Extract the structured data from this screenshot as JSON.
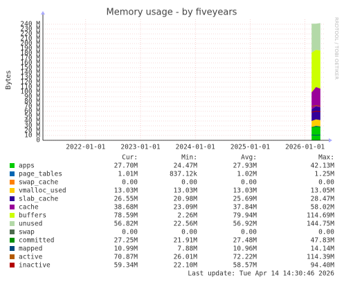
{
  "chart_data": {
    "type": "stacked_area",
    "title": "Memory usage - by fiveyears",
    "y_label": "Bytes",
    "side_note": "RRDTOOL / TOBI OETIKER",
    "xlim": [
      2021.22,
      2026.37
    ],
    "xticks": [
      {
        "value": 2022,
        "label": "2022-01-01"
      },
      {
        "value": 2023,
        "label": "2023-01-01"
      },
      {
        "value": 2024,
        "label": "2024-01-01"
      },
      {
        "value": 2025,
        "label": "2025-01-01"
      },
      {
        "value": 2026,
        "label": "2026-01-01"
      }
    ],
    "ylim": [
      0,
      250
    ],
    "yticks": [
      0,
      {
        "value": 10,
        "label": "10 M"
      },
      {
        "value": 20,
        "label": "20 M"
      },
      {
        "value": 30,
        "label": "30 M"
      },
      {
        "value": 40,
        "label": "40 M"
      },
      {
        "value": 50,
        "label": "50 M"
      },
      {
        "value": 60,
        "label": "60 M"
      },
      {
        "value": 70,
        "label": "70 M"
      },
      {
        "value": 80,
        "label": "80 M"
      },
      {
        "value": 90,
        "label": "90 M"
      },
      {
        "value": 100,
        "label": "100 M"
      },
      {
        "value": 110,
        "label": "110 M"
      },
      {
        "value": 120,
        "label": "120 M"
      },
      {
        "value": 130,
        "label": "130 M"
      },
      {
        "value": 140,
        "label": "140 M"
      },
      {
        "value": 150,
        "label": "150 M"
      },
      {
        "value": 160,
        "label": "160 M"
      },
      {
        "value": 170,
        "label": "170 M"
      },
      {
        "value": 180,
        "label": "180 M"
      },
      {
        "value": 190,
        "label": "190 M"
      },
      {
        "value": 200,
        "label": "200 M"
      },
      {
        "value": 210,
        "label": "210 M"
      },
      {
        "value": 220,
        "label": "220 M"
      },
      {
        "value": 230,
        "label": "230 M"
      },
      {
        "value": 240,
        "label": "240 M"
      }
    ],
    "grid": true,
    "x": [
      2026.12,
      2026.2,
      2026.28
    ],
    "stat_headers": [
      "Cur:",
      "Min:",
      "Avg:",
      "Max:"
    ],
    "series": [
      {
        "name": "apps",
        "color": "#00cc00",
        "kind": "area",
        "values": [
          26,
          29,
          27.7
        ],
        "stats": [
          "27.70M",
          "24.47M",
          "27.93M",
          "42.13M"
        ]
      },
      {
        "name": "page_tables",
        "color": "#0066b3",
        "kind": "area",
        "values": [
          1.0,
          1.1,
          1.01
        ],
        "stats": [
          "1.01M",
          "837.12k",
          "1.02M",
          "1.25M"
        ]
      },
      {
        "name": "swap_cache",
        "color": "#ff8000",
        "kind": "area",
        "values": [
          0,
          0,
          0
        ],
        "stats": [
          "0.00",
          "0.00",
          "0.00",
          "0.00"
        ]
      },
      {
        "name": "vmalloc_used",
        "color": "#ffcc00",
        "kind": "area",
        "values": [
          13.03,
          13.03,
          13.03
        ],
        "stats": [
          "13.03M",
          "13.03M",
          "13.03M",
          "13.05M"
        ]
      },
      {
        "name": "slab_cache",
        "color": "#330099",
        "kind": "area",
        "values": [
          24,
          27,
          26.55
        ],
        "stats": [
          "26.55M",
          "20.98M",
          "25.69M",
          "28.47M"
        ]
      },
      {
        "name": "cache",
        "color": "#990099",
        "kind": "area",
        "values": [
          35,
          40,
          38.68
        ],
        "stats": [
          "38.68M",
          "23.09M",
          "37.84M",
          "58.02M"
        ]
      },
      {
        "name": "buffers",
        "color": "#ccff00",
        "kind": "area",
        "values": [
          82,
          77,
          78.59
        ],
        "stats": [
          "78.59M",
          "2.26M",
          "79.94M",
          "114.69M"
        ]
      },
      {
        "name": "unused",
        "color": "#b3d9a8",
        "kind": "area",
        "values": [
          60,
          54,
          56.82
        ],
        "stats": [
          "56.82M",
          "22.56M",
          "56.92M",
          "144.75M"
        ]
      },
      {
        "name": "swap",
        "color": "#4d6b4d",
        "kind": "area",
        "values": [
          0,
          0,
          0
        ],
        "stats": [
          "0.00",
          "0.00",
          "0.00",
          "0.00"
        ]
      },
      {
        "name": "committed",
        "color": "#008f00",
        "kind": "line",
        "values": [
          27,
          28,
          27.25
        ],
        "stats": [
          "27.25M",
          "21.91M",
          "27.48M",
          "47.83M"
        ]
      },
      {
        "name": "mapped",
        "color": "#00487d",
        "kind": "line",
        "values": [
          11,
          10.5,
          10.99
        ],
        "stats": [
          "10.99M",
          "7.88M",
          "10.96M",
          "14.14M"
        ]
      },
      {
        "name": "active",
        "color": "#b35a00",
        "kind": "line",
        "values": [
          70,
          72,
          70.87
        ],
        "stats": [
          "70.87M",
          "26.01M",
          "72.22M",
          "114.39M"
        ]
      },
      {
        "name": "inactive",
        "color": "#b30000",
        "kind": "line",
        "values": [
          58,
          60,
          59.34
        ],
        "stats": [
          "59.34M",
          "22.10M",
          "58.57M",
          "94.40M"
        ]
      }
    ],
    "last_update": "Last update: Tue Apr 14 14:30:46 2026"
  }
}
